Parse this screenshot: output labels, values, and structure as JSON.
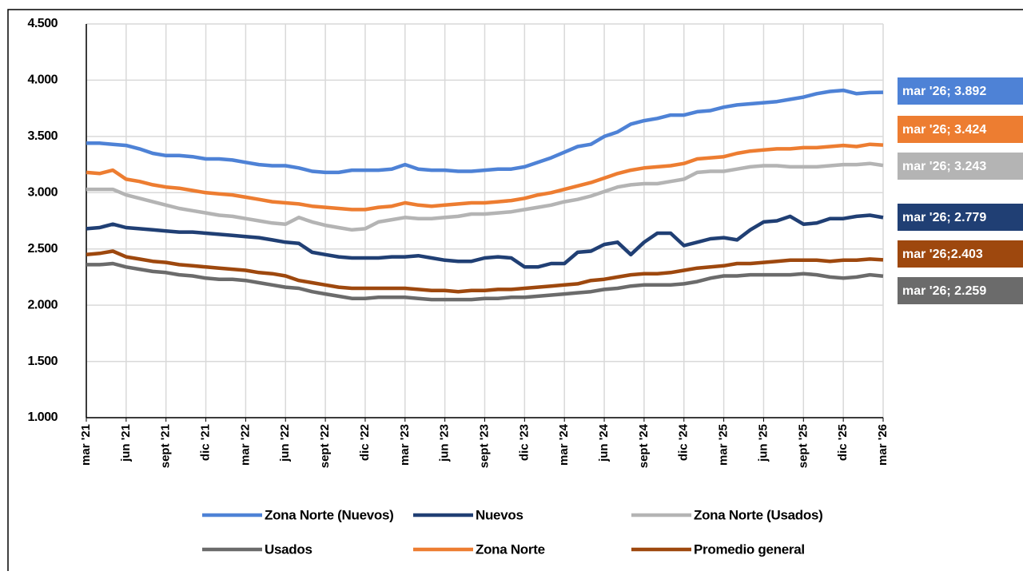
{
  "chart_data": {
    "type": "line",
    "categories": [
      "mar '21",
      null,
      null,
      "jun '21",
      null,
      null,
      "sept '21",
      null,
      null,
      "dic '21",
      null,
      null,
      "mar '22",
      null,
      null,
      "jun '22",
      null,
      null,
      "sept '22",
      null,
      null,
      "dic '22",
      null,
      null,
      "mar '23",
      null,
      null,
      "jun '23",
      null,
      null,
      "sept '23",
      null,
      null,
      "dic '23",
      null,
      null,
      "mar '24",
      null,
      null,
      "jun '24",
      null,
      null,
      "sept '24",
      null,
      null,
      "dic '24",
      null,
      null,
      "mar '25",
      null,
      null,
      "jun '25",
      null,
      null,
      "sept '25",
      null,
      null,
      "dic '25",
      null,
      null,
      "mar '26"
    ],
    "ylim": [
      1000,
      4500
    ],
    "yticks": [
      {
        "value": 1000,
        "label": "1.000"
      },
      {
        "value": 1500,
        "label": "1.500"
      },
      {
        "value": 2000,
        "label": "2.000"
      },
      {
        "value": 2500,
        "label": "2.500"
      },
      {
        "value": 3000,
        "label": "3.000"
      },
      {
        "value": 3500,
        "label": "3.500"
      },
      {
        "value": 4000,
        "label": "4.000"
      },
      {
        "value": 4500,
        "label": "4.500"
      }
    ],
    "grid": true,
    "legend": "bottom",
    "series": [
      {
        "name": "Zona Norte (Nuevos)",
        "color": "#4e82d6",
        "end_label": "mar '26; 3.892",
        "values": [
          3440,
          3440,
          3430,
          3420,
          3390,
          3350,
          3330,
          3330,
          3320,
          3300,
          3300,
          3290,
          3270,
          3250,
          3240,
          3240,
          3220,
          3190,
          3180,
          3180,
          3200,
          3200,
          3200,
          3210,
          3250,
          3210,
          3200,
          3200,
          3190,
          3190,
          3200,
          3210,
          3210,
          3230,
          3270,
          3310,
          3360,
          3410,
          3430,
          3500,
          3540,
          3610,
          3640,
          3660,
          3690,
          3690,
          3720,
          3730,
          3760,
          3780,
          3790,
          3800,
          3810,
          3830,
          3850,
          3880,
          3900,
          3910,
          3880,
          3890,
          3892
        ]
      },
      {
        "name": "Nuevos",
        "color": "#203f74",
        "end_label": "mar '26; 2.779",
        "values": [
          2680,
          2690,
          2720,
          2690,
          2680,
          2670,
          2660,
          2650,
          2650,
          2640,
          2630,
          2620,
          2610,
          2600,
          2580,
          2560,
          2550,
          2470,
          2450,
          2430,
          2420,
          2420,
          2420,
          2430,
          2430,
          2440,
          2420,
          2400,
          2390,
          2390,
          2420,
          2430,
          2420,
          2340,
          2340,
          2370,
          2370,
          2470,
          2480,
          2540,
          2560,
          2450,
          2560,
          2640,
          2640,
          2530,
          2560,
          2590,
          2600,
          2580,
          2670,
          2740,
          2750,
          2790,
          2720,
          2730,
          2770,
          2770,
          2790,
          2800,
          2779
        ]
      },
      {
        "name": "Zona Norte (Usados)",
        "color": "#b4b4b4",
        "end_label": "mar '26; 3.243",
        "values": [
          3030,
          3030,
          3030,
          2980,
          2950,
          2920,
          2890,
          2860,
          2840,
          2820,
          2800,
          2790,
          2770,
          2750,
          2730,
          2720,
          2780,
          2740,
          2710,
          2690,
          2670,
          2680,
          2740,
          2760,
          2780,
          2770,
          2770,
          2780,
          2790,
          2810,
          2810,
          2820,
          2830,
          2850,
          2870,
          2890,
          2920,
          2940,
          2970,
          3010,
          3050,
          3070,
          3080,
          3080,
          3100,
          3120,
          3180,
          3190,
          3190,
          3210,
          3230,
          3240,
          3240,
          3230,
          3230,
          3230,
          3240,
          3250,
          3250,
          3260,
          3243
        ]
      },
      {
        "name": "Usados",
        "color": "#6b6b6b",
        "end_label": "mar '26; 2.259",
        "values": [
          2360,
          2360,
          2370,
          2340,
          2320,
          2300,
          2290,
          2270,
          2260,
          2240,
          2230,
          2230,
          2220,
          2200,
          2180,
          2160,
          2150,
          2120,
          2100,
          2080,
          2060,
          2060,
          2070,
          2070,
          2070,
          2060,
          2050,
          2050,
          2050,
          2050,
          2060,
          2060,
          2070,
          2070,
          2080,
          2090,
          2100,
          2110,
          2120,
          2140,
          2150,
          2170,
          2180,
          2180,
          2180,
          2190,
          2210,
          2240,
          2260,
          2260,
          2270,
          2270,
          2270,
          2270,
          2280,
          2270,
          2250,
          2240,
          2250,
          2270,
          2259
        ]
      },
      {
        "name": "Zona Norte",
        "color": "#ed7d31",
        "end_label": "mar '26; 3.424",
        "values": [
          3180,
          3170,
          3200,
          3120,
          3100,
          3070,
          3050,
          3040,
          3020,
          3000,
          2990,
          2980,
          2960,
          2940,
          2920,
          2910,
          2900,
          2880,
          2870,
          2860,
          2850,
          2850,
          2870,
          2880,
          2910,
          2890,
          2880,
          2890,
          2900,
          2910,
          2910,
          2920,
          2930,
          2950,
          2980,
          3000,
          3030,
          3060,
          3090,
          3130,
          3170,
          3200,
          3220,
          3230,
          3240,
          3260,
          3300,
          3310,
          3320,
          3350,
          3370,
          3380,
          3390,
          3390,
          3400,
          3400,
          3410,
          3420,
          3410,
          3430,
          3424
        ]
      },
      {
        "name": "Promedio general",
        "color": "#9e480e",
        "end_label": "mar '26;2.403",
        "values": [
          2450,
          2460,
          2480,
          2430,
          2410,
          2390,
          2380,
          2360,
          2350,
          2340,
          2330,
          2320,
          2310,
          2290,
          2280,
          2260,
          2220,
          2200,
          2180,
          2160,
          2150,
          2150,
          2150,
          2150,
          2150,
          2140,
          2130,
          2130,
          2120,
          2130,
          2130,
          2140,
          2140,
          2150,
          2160,
          2170,
          2180,
          2190,
          2220,
          2230,
          2250,
          2270,
          2280,
          2280,
          2290,
          2310,
          2330,
          2340,
          2350,
          2370,
          2370,
          2380,
          2390,
          2400,
          2400,
          2400,
          2390,
          2400,
          2400,
          2410,
          2403
        ]
      }
    ]
  }
}
